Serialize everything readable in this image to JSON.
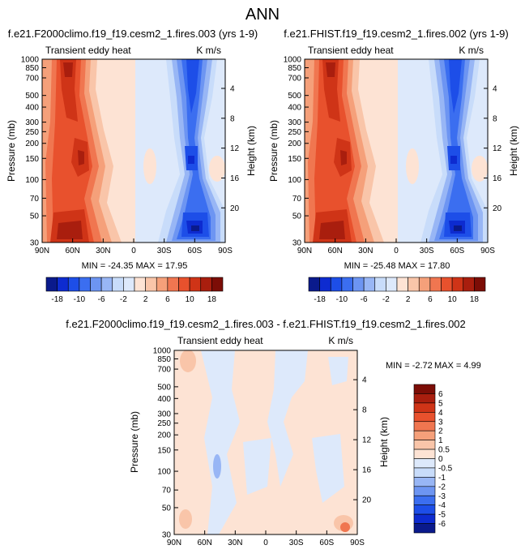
{
  "page": {
    "title": "ANN"
  },
  "colors": {
    "blue_scale": [
      "#0a1a8c",
      "#0d2bd0",
      "#1d4ee8",
      "#3b6ef0",
      "#6d95f2",
      "#98b6f5",
      "#c8dcfa",
      "#dde9fb"
    ],
    "red_scale": [
      "#fde3d4",
      "#f9c5a9",
      "#f5a07a",
      "#f07650",
      "#e8512d",
      "#cf3417",
      "#a91e0e",
      "#7c0d06"
    ],
    "diff_neg_light": "#dde9fb",
    "diff_pos_light": "#fde3d4"
  },
  "chart_data": [
    {
      "type": "heatmap",
      "panel": "left",
      "title": "f.e21.F2000climo.f19_f19.cesm2_1.fires.003 (yrs 1-9)",
      "subtitle": "Transient eddy heat",
      "units": "K m/s",
      "xlabel": "",
      "ylabel": "Pressure (mb)",
      "ylabel_right": "Height (km)",
      "x_ticks": [
        "90N",
        "60N",
        "30N",
        "0",
        "30S",
        "60S",
        "90S"
      ],
      "y_ticks": [
        "30",
        "50",
        "70",
        "100",
        "150",
        "200",
        "250",
        "300",
        "400",
        "500",
        "700",
        "850",
        "1000"
      ],
      "y_right_ticks": [
        "20",
        "16",
        "12",
        "8",
        "4"
      ],
      "stats": "MIN = -24.35   MAX =  17.95",
      "colorbar_labels": [
        "-18",
        "-10",
        "-6",
        "-2",
        "2",
        "6",
        "10",
        "18"
      ]
    },
    {
      "type": "heatmap",
      "panel": "right",
      "title": "f.e21.FHIST.f19_f19.cesm2_1.fires.002 (yrs 1-9)",
      "subtitle": "Transient eddy heat",
      "units": "K m/s",
      "ylabel": "Pressure (mb)",
      "ylabel_right": "Height (km)",
      "x_ticks": [
        "90N",
        "60N",
        "30N",
        "0",
        "30S",
        "60S",
        "90S"
      ],
      "y_ticks": [
        "30",
        "50",
        "70",
        "100",
        "150",
        "200",
        "250",
        "300",
        "400",
        "500",
        "700",
        "850",
        "1000"
      ],
      "y_right_ticks": [
        "20",
        "16",
        "12",
        "8",
        "4"
      ],
      "stats": "MIN = -25.48   MAX =  17.80",
      "colorbar_labels": [
        "-18",
        "-10",
        "-6",
        "-2",
        "2",
        "6",
        "10",
        "18"
      ]
    },
    {
      "type": "heatmap",
      "panel": "difference",
      "title": "f.e21.F2000climo.f19_f19.cesm2_1.fires.003 - f.e21.FHIST.f19_f19.cesm2_1.fires.002",
      "subtitle": "Transient eddy heat",
      "units": "K m/s",
      "ylabel": "Pressure (mb)",
      "ylabel_right": "Height (km)",
      "x_ticks": [
        "90N",
        "60N",
        "30N",
        "0",
        "30S",
        "60S",
        "90S"
      ],
      "y_ticks": [
        "30",
        "50",
        "70",
        "100",
        "150",
        "200",
        "250",
        "300",
        "400",
        "500",
        "700",
        "850",
        "1000"
      ],
      "y_right_ticks": [
        "20",
        "16",
        "12",
        "8",
        "4"
      ],
      "stats_min": "MIN =  -2.72",
      "stats_max": "MAX =   4.99",
      "colorbar_labels": [
        "6",
        "5",
        "4",
        "3",
        "2",
        "1",
        "0.5",
        "0",
        "-0.5",
        "-1",
        "-2",
        "-3",
        "-4",
        "-5",
        "-6"
      ]
    }
  ]
}
